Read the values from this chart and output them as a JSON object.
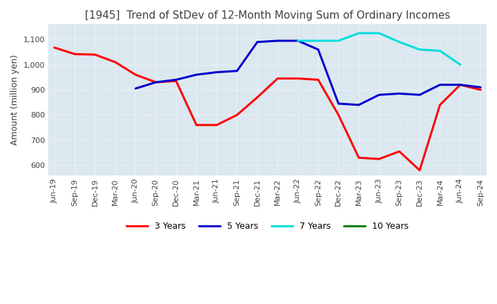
{
  "title": "[1945]  Trend of StDev of 12-Month Moving Sum of Ordinary Incomes",
  "ylabel": "Amount (million yen)",
  "ylim": [
    560,
    1160
  ],
  "yticks": [
    600,
    700,
    800,
    900,
    1000,
    1100
  ],
  "background_color": "#ffffff",
  "plot_bg_color": "#dce8f0",
  "grid_color": "#ffffff",
  "title_color": "#404040",
  "x_labels": [
    "Jun-19",
    "Sep-19",
    "Dec-19",
    "Mar-20",
    "Jun-20",
    "Sep-20",
    "Dec-20",
    "Mar-21",
    "Jun-21",
    "Sep-21",
    "Dec-21",
    "Mar-22",
    "Jun-22",
    "Sep-22",
    "Dec-22",
    "Mar-23",
    "Jun-23",
    "Sep-23",
    "Dec-23",
    "Mar-24",
    "Jun-24",
    "Sep-24"
  ],
  "lines": [
    {
      "label": "3 Years",
      "color": "#ff0000",
      "data": [
        1068,
        1042,
        1040,
        1010,
        960,
        930,
        935,
        760,
        760,
        800,
        870,
        945,
        945,
        940,
        800,
        630,
        625,
        655,
        580,
        840,
        920,
        900
      ]
    },
    {
      "label": "5 Years",
      "color": "#0000cc",
      "data": [
        null,
        null,
        null,
        null,
        905,
        930,
        940,
        960,
        970,
        975,
        1090,
        1095,
        1095,
        1060,
        845,
        840,
        880,
        885,
        880,
        920,
        920,
        910
      ]
    },
    {
      "label": "7 Years",
      "color": "#00dddd",
      "data": [
        null,
        null,
        null,
        null,
        null,
        null,
        null,
        null,
        null,
        null,
        null,
        null,
        1095,
        1095,
        1095,
        1125,
        1125,
        1090,
        1060,
        1055,
        1000,
        null
      ]
    },
    {
      "label": "10 Years",
      "color": "#008000",
      "data": [
        null,
        null,
        null,
        null,
        null,
        null,
        null,
        null,
        null,
        null,
        null,
        null,
        null,
        null,
        null,
        null,
        null,
        null,
        null,
        null,
        null,
        null
      ]
    }
  ]
}
